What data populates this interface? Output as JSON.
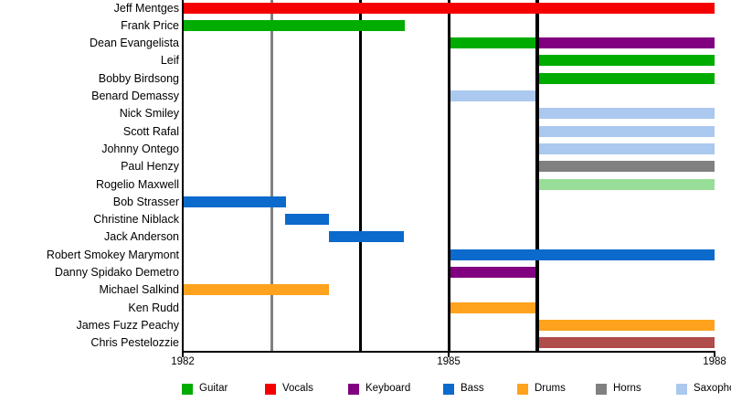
{
  "chart_data": {
    "type": "bar",
    "subtype": "band-member-timeline",
    "title": "",
    "xlabel": "",
    "ylabel": "",
    "x_axis": {
      "range": [
        1982,
        1988
      ],
      "ticks": [
        "1982",
        "1985",
        "1988"
      ],
      "tick_years": [
        1982,
        1985,
        1988
      ]
    },
    "gridlines": [
      {
        "year": 1983,
        "color": "#808080",
        "width": 3
      },
      {
        "year": 1984,
        "color": "#000000",
        "width": 3
      },
      {
        "year": 1985,
        "color": "#000000",
        "width": 3
      },
      {
        "year": 1986,
        "color": "#000000",
        "width": 4
      }
    ],
    "legend": [
      {
        "label": "Guitar",
        "color": "#00ac00"
      },
      {
        "label": "Vocals",
        "color": "#f40000"
      },
      {
        "label": "Keyboard",
        "color": "#800080"
      },
      {
        "label": "Bass",
        "color": "#0b6acb"
      },
      {
        "label": "Drums",
        "color": "#ffa21e"
      },
      {
        "label": "Horns",
        "color": "#808080"
      },
      {
        "label": "Saxophone",
        "color": "#abc8ee"
      }
    ],
    "rows": [
      {
        "name": "Jeff Mentges",
        "bars": [
          {
            "start": 1982,
            "end": 1988,
            "role": "Vocals",
            "color": "#f40000"
          }
        ]
      },
      {
        "name": "Frank Price",
        "bars": [
          {
            "start": 1982,
            "end": 1984.5,
            "role": "Guitar",
            "color": "#00ac00"
          }
        ]
      },
      {
        "name": "Dean Evangelista",
        "bars": [
          {
            "start": 1985,
            "end": 1986,
            "role": "Guitar",
            "color": "#00ac00"
          },
          {
            "start": 1986,
            "end": 1988,
            "role": "Keyboard",
            "color": "#800080"
          }
        ]
      },
      {
        "name": "Leif",
        "bars": [
          {
            "start": 1986,
            "end": 1988,
            "role": "Guitar",
            "color": "#00ac00"
          }
        ]
      },
      {
        "name": "Bobby Birdsong",
        "bars": [
          {
            "start": 1986,
            "end": 1988,
            "role": "Guitar",
            "color": "#00ac00"
          }
        ]
      },
      {
        "name": "Benard Demassy",
        "bars": [
          {
            "start": 1985,
            "end": 1986,
            "role": "Saxophone",
            "color": "#abc8ee"
          }
        ]
      },
      {
        "name": "Nick Smiley",
        "bars": [
          {
            "start": 1986,
            "end": 1988,
            "role": "Saxophone",
            "color": "#abc8ee"
          }
        ]
      },
      {
        "name": "Scott Rafal",
        "bars": [
          {
            "start": 1986,
            "end": 1988,
            "role": "Saxophone",
            "color": "#abc8ee"
          }
        ]
      },
      {
        "name": "Johnny Ontego",
        "bars": [
          {
            "start": 1986,
            "end": 1988,
            "role": "Saxophone",
            "color": "#abc8ee"
          }
        ]
      },
      {
        "name": "Paul Henzy",
        "bars": [
          {
            "start": 1986,
            "end": 1988,
            "role": "Horns",
            "color": "#808080"
          }
        ]
      },
      {
        "name": "Rogelio Maxwell",
        "bars": [
          {
            "start": 1986,
            "end": 1988,
            "role": "",
            "color": "#98de98"
          }
        ]
      },
      {
        "name": "Bob Strasser",
        "bars": [
          {
            "start": 1982,
            "end": 1983.17,
            "role": "Bass",
            "color": "#0b6acb"
          }
        ]
      },
      {
        "name": "Christine Niblack",
        "bars": [
          {
            "start": 1983.15,
            "end": 1983.65,
            "role": "Bass",
            "color": "#0b6acb"
          }
        ]
      },
      {
        "name": "Jack Anderson",
        "bars": [
          {
            "start": 1983.65,
            "end": 1984.5,
            "role": "Bass",
            "color": "#0b6acb"
          }
        ]
      },
      {
        "name": "Robert Smokey Marymont",
        "bars": [
          {
            "start": 1985,
            "end": 1988,
            "role": "Bass",
            "color": "#0b6acb"
          }
        ]
      },
      {
        "name": "Danny Spidako Demetro",
        "bars": [
          {
            "start": 1985,
            "end": 1986,
            "role": "Keyboard",
            "color": "#800080"
          }
        ]
      },
      {
        "name": "Michael Salkind",
        "bars": [
          {
            "start": 1982,
            "end": 1983.65,
            "role": "Drums",
            "color": "#ffa21e"
          }
        ]
      },
      {
        "name": "Ken Rudd",
        "bars": [
          {
            "start": 1985,
            "end": 1986,
            "role": "Drums",
            "color": "#ffa21e"
          }
        ]
      },
      {
        "name": "James Fuzz Peachy",
        "bars": [
          {
            "start": 1986,
            "end": 1988,
            "role": "Drums",
            "color": "#ffa21e"
          }
        ]
      },
      {
        "name": "Chris Pestelozzie",
        "bars": [
          {
            "start": 1986,
            "end": 1988,
            "role": "",
            "color": "#b04c4c"
          }
        ]
      }
    ]
  }
}
